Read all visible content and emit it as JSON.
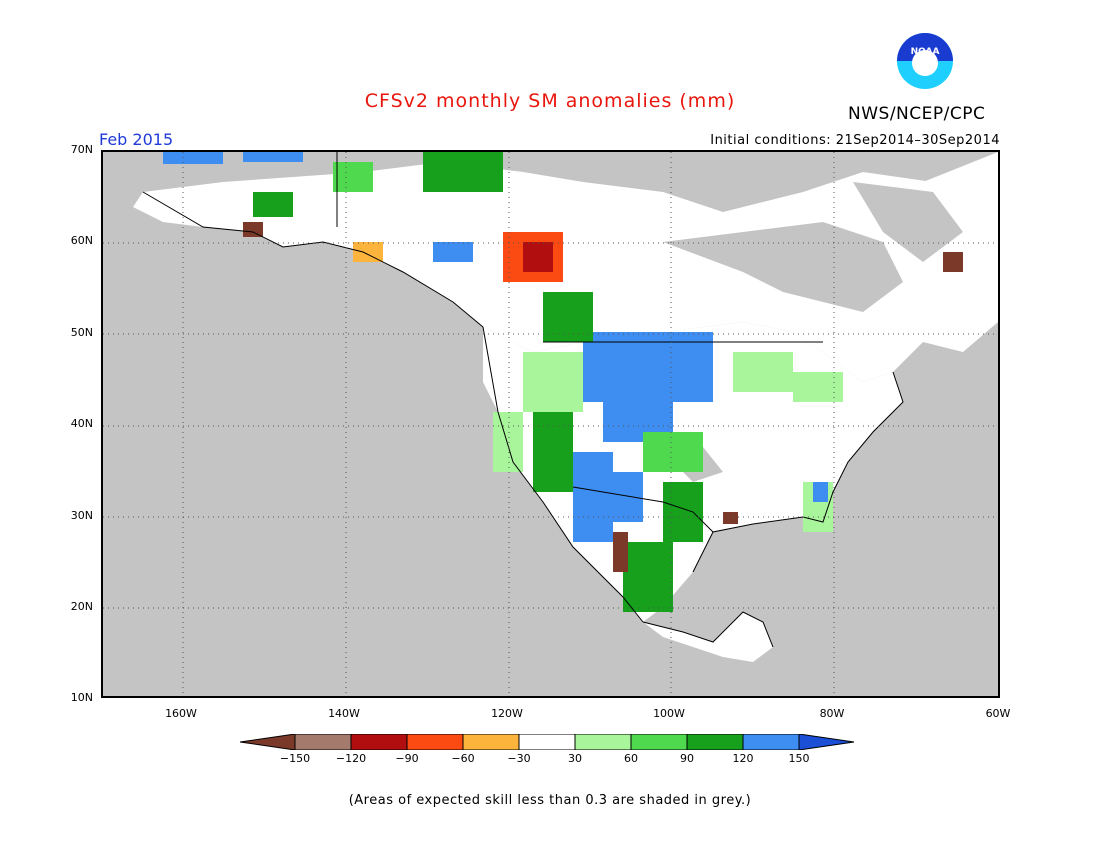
{
  "header": {
    "title": "CFSv2 monthly SM anomalies (mm)",
    "agency": "NWS/NCEP/CPC",
    "logo_text": "NOAA",
    "month": "Feb 2015",
    "initial_conditions": "Initial conditions: 21Sep2014–30Sep2014"
  },
  "map": {
    "region": "North America",
    "lat_labels": [
      "70N",
      "60N",
      "50N",
      "40N",
      "30N",
      "20N",
      "10N"
    ],
    "lon_labels": [
      "160W",
      "140W",
      "120W",
      "100W",
      "80W",
      "60W"
    ],
    "extent": {
      "lon_min": -172,
      "lon_max": -60,
      "lat_min": 10,
      "lat_max": 70
    },
    "colors": {
      "no_skill_grey": "#c4c4c4",
      "land_outline": "#000000",
      "grid_dots": "#555555"
    }
  },
  "legend": {
    "labels": [
      "−150",
      "−120",
      "−90",
      "−60",
      "−30",
      "30",
      "60",
      "90",
      "120",
      "150"
    ],
    "bins": [
      {
        "color": "#7b3a29"
      },
      {
        "color": "#a37a6c"
      },
      {
        "color": "#b10f0f"
      },
      {
        "color": "#fb4a12"
      },
      {
        "color": "#fdb43d"
      },
      {
        "color": "#ffffff"
      },
      {
        "color": "#a8f59c"
      },
      {
        "color": "#4ed94e"
      },
      {
        "color": "#16a01c"
      },
      {
        "color": "#3d8ef0"
      },
      {
        "color": "#1a4fd6"
      }
    ]
  },
  "footer": {
    "note": "(Areas of expected skill less than 0.3 are shaded in grey.)"
  }
}
